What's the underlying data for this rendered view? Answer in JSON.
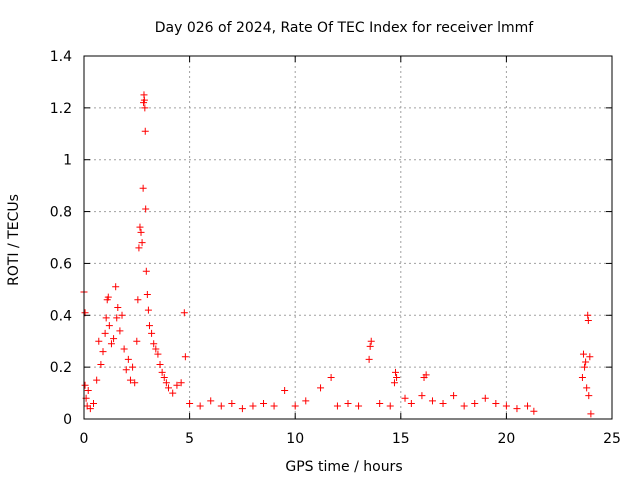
{
  "chart_data": {
    "type": "scatter",
    "title": "Day 026 of 2024, Rate Of TEC Index for receiver lmmf",
    "xlabel": "GPS time / hours",
    "ylabel": "ROTI / TECUs",
    "xlim": [
      0,
      25
    ],
    "ylim": [
      0,
      1.4
    ],
    "xticks": [
      0,
      5,
      10,
      15,
      20,
      25
    ],
    "yticks": [
      0,
      0.2,
      0.4,
      0.6,
      0.8,
      1,
      1.2,
      1.4
    ],
    "xtick_labels": [
      "0",
      "5",
      "10",
      "15",
      "20",
      "25"
    ],
    "ytick_labels": [
      "0",
      "0.2",
      "0.4",
      "0.6",
      "0.8",
      "1",
      "1.2",
      "1.4"
    ],
    "grid": true,
    "marker": "+",
    "color": "#ff0000",
    "series": [
      {
        "name": "ROTI",
        "points": [
          [
            0.0,
            0.49
          ],
          [
            0.05,
            0.41
          ],
          [
            0.05,
            0.13
          ],
          [
            0.1,
            0.08
          ],
          [
            0.15,
            0.05
          ],
          [
            0.2,
            0.11
          ],
          [
            0.3,
            0.04
          ],
          [
            0.45,
            0.06
          ],
          [
            0.6,
            0.15
          ],
          [
            0.7,
            0.3
          ],
          [
            0.8,
            0.21
          ],
          [
            0.9,
            0.26
          ],
          [
            1.0,
            0.33
          ],
          [
            1.05,
            0.39
          ],
          [
            1.1,
            0.46
          ],
          [
            1.15,
            0.47
          ],
          [
            1.2,
            0.36
          ],
          [
            1.3,
            0.29
          ],
          [
            1.4,
            0.31
          ],
          [
            1.5,
            0.51
          ],
          [
            1.55,
            0.39
          ],
          [
            1.6,
            0.43
          ],
          [
            1.7,
            0.34
          ],
          [
            1.8,
            0.4
          ],
          [
            1.9,
            0.27
          ],
          [
            2.0,
            0.19
          ],
          [
            2.1,
            0.23
          ],
          [
            2.2,
            0.15
          ],
          [
            2.3,
            0.2
          ],
          [
            2.4,
            0.14
          ],
          [
            2.5,
            0.3
          ],
          [
            2.55,
            0.46
          ],
          [
            2.6,
            0.66
          ],
          [
            2.65,
            0.74
          ],
          [
            2.7,
            0.72
          ],
          [
            2.75,
            0.68
          ],
          [
            2.8,
            0.89
          ],
          [
            2.82,
            1.22
          ],
          [
            2.84,
            1.25
          ],
          [
            2.86,
            1.23
          ],
          [
            2.88,
            1.2
          ],
          [
            2.9,
            1.11
          ],
          [
            2.92,
            0.81
          ],
          [
            2.95,
            0.57
          ],
          [
            3.0,
            0.48
          ],
          [
            3.05,
            0.42
          ],
          [
            3.1,
            0.36
          ],
          [
            3.2,
            0.33
          ],
          [
            3.3,
            0.29
          ],
          [
            3.4,
            0.27
          ],
          [
            3.5,
            0.25
          ],
          [
            3.6,
            0.21
          ],
          [
            3.7,
            0.18
          ],
          [
            3.8,
            0.16
          ],
          [
            3.9,
            0.14
          ],
          [
            4.0,
            0.12
          ],
          [
            4.2,
            0.1
          ],
          [
            4.4,
            0.13
          ],
          [
            4.6,
            0.14
          ],
          [
            4.75,
            0.41
          ],
          [
            4.8,
            0.24
          ],
          [
            5.0,
            0.06
          ],
          [
            5.5,
            0.05
          ],
          [
            6.0,
            0.07
          ],
          [
            6.5,
            0.05
          ],
          [
            7.0,
            0.06
          ],
          [
            7.5,
            0.04
          ],
          [
            8.0,
            0.05
          ],
          [
            8.5,
            0.06
          ],
          [
            9.0,
            0.05
          ],
          [
            9.5,
            0.11
          ],
          [
            10.0,
            0.05
          ],
          [
            10.5,
            0.07
          ],
          [
            11.2,
            0.12
          ],
          [
            11.7,
            0.16
          ],
          [
            12.0,
            0.05
          ],
          [
            12.5,
            0.06
          ],
          [
            13.0,
            0.05
          ],
          [
            13.5,
            0.23
          ],
          [
            13.55,
            0.28
          ],
          [
            13.6,
            0.3
          ],
          [
            14.0,
            0.06
          ],
          [
            14.5,
            0.05
          ],
          [
            14.7,
            0.14
          ],
          [
            14.75,
            0.18
          ],
          [
            14.8,
            0.16
          ],
          [
            15.2,
            0.08
          ],
          [
            15.5,
            0.06
          ],
          [
            16.0,
            0.09
          ],
          [
            16.1,
            0.16
          ],
          [
            16.2,
            0.17
          ],
          [
            16.5,
            0.07
          ],
          [
            17.0,
            0.06
          ],
          [
            17.5,
            0.09
          ],
          [
            18.0,
            0.05
          ],
          [
            18.5,
            0.06
          ],
          [
            19.0,
            0.08
          ],
          [
            19.5,
            0.06
          ],
          [
            20.0,
            0.05
          ],
          [
            20.5,
            0.04
          ],
          [
            21.0,
            0.05
          ],
          [
            21.3,
            0.03
          ],
          [
            23.6,
            0.16
          ],
          [
            23.65,
            0.25
          ],
          [
            23.7,
            0.2
          ],
          [
            23.75,
            0.22
          ],
          [
            23.8,
            0.12
          ],
          [
            23.85,
            0.4
          ],
          [
            23.88,
            0.38
          ],
          [
            23.9,
            0.09
          ],
          [
            23.95,
            0.24
          ],
          [
            24.0,
            0.02
          ]
        ]
      }
    ]
  }
}
